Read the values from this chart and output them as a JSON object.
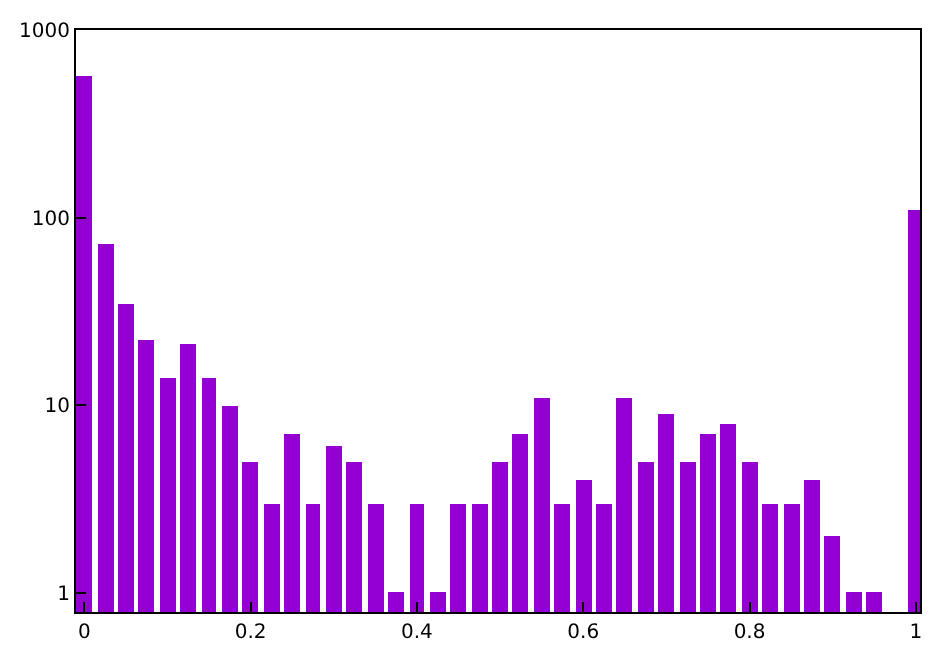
{
  "chart_data": {
    "type": "bar",
    "x": [
      0,
      0.025,
      0.05,
      0.075,
      0.1,
      0.125,
      0.15,
      0.175,
      0.2,
      0.225,
      0.25,
      0.275,
      0.3,
      0.325,
      0.35,
      0.375,
      0.4,
      0.425,
      0.45,
      0.475,
      0.5,
      0.525,
      0.55,
      0.575,
      0.6,
      0.625,
      0.65,
      0.675,
      0.7,
      0.725,
      0.75,
      0.775,
      0.8,
      0.825,
      0.85,
      0.875,
      0.9,
      0.925,
      0.95,
      0.975,
      1
    ],
    "values": [
      570,
      72,
      35,
      22,
      14,
      21,
      14,
      10,
      5,
      3,
      7,
      3,
      6,
      5,
      3,
      1,
      3,
      1,
      3,
      3,
      5,
      7,
      11,
      3,
      4,
      3,
      11,
      5,
      9,
      5,
      7,
      8,
      5,
      3,
      3,
      4,
      2,
      1,
      1,
      null,
      110
    ],
    "color": "#9400d3",
    "log": "y",
    "xlim": [
      -0.01,
      1.005
    ],
    "ylim": [
      0.79,
      1000
    ],
    "xticks": [
      0,
      0.2,
      0.4,
      0.6,
      0.8,
      1
    ],
    "yticks": [
      1,
      10,
      100,
      1000
    ]
  }
}
